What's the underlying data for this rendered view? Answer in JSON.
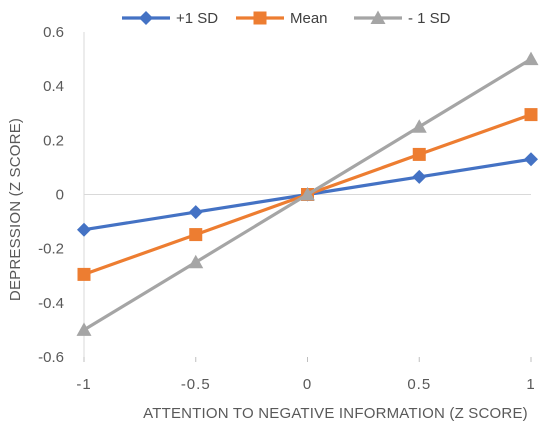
{
  "chart_data": {
    "type": "line",
    "x": [
      -1,
      -0.5,
      0,
      0.5,
      1
    ],
    "series": [
      {
        "name": "+1 SD",
        "values": [
          -0.13,
          -0.065,
          0,
          0.065,
          0.13
        ],
        "color": "#4472C4",
        "marker": "diamond"
      },
      {
        "name": "Mean",
        "values": [
          -0.295,
          -0.148,
          0,
          0.148,
          0.295
        ],
        "color": "#ED7D31",
        "marker": "square"
      },
      {
        "name": "- 1 SD",
        "values": [
          -0.5,
          -0.25,
          0,
          0.25,
          0.5
        ],
        "color": "#A5A5A5",
        "marker": "triangle"
      }
    ],
    "xlabel": "ATTENTION TO NEGATIVE INFORMATION (Z SCORE)",
    "ylabel": "DEPRESSION (Z SCORE)",
    "xlim": [
      -1,
      1
    ],
    "ylim": [
      -0.6,
      0.6
    ],
    "xticks": [
      -1,
      -0.5,
      0,
      0.5,
      1
    ],
    "xtick_labels": [
      "-1",
      "-0.5",
      "0",
      "0.5",
      "1"
    ],
    "yticks": [
      -0.6,
      -0.4,
      -0.2,
      0,
      0.2,
      0.4,
      0.6
    ],
    "ytick_labels": [
      "-0.6",
      "-0.4",
      "-0.2",
      "0",
      "0.2",
      "0.4",
      "0.6"
    ],
    "grid": false,
    "legend_position": "top-center"
  }
}
